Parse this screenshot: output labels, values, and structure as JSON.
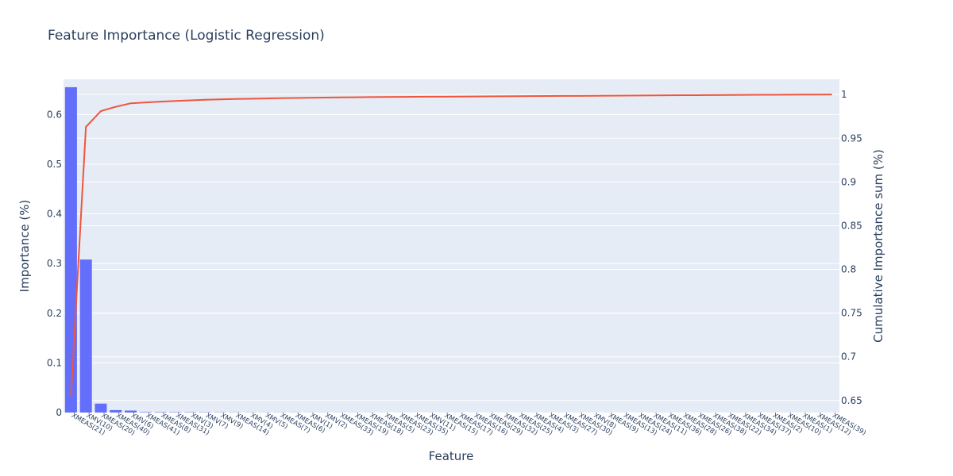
{
  "chart_data": {
    "type": "bar",
    "title": "Feature Importance (Logistic Regression)",
    "xlabel": "Feature",
    "ylabel": "Importance (%)",
    "y2label": "Cumulative Importance sum (%)",
    "ylim": [
      0,
      0.6708
    ],
    "y2lim": [
      0.6362,
      1.0174
    ],
    "yticks": [
      "0",
      "0.1",
      "0.2",
      "0.3",
      "0.4",
      "0.5",
      "0.6"
    ],
    "y2ticks": [
      "0.65",
      "0.7",
      "0.75",
      "0.8",
      "0.85",
      "0.9",
      "0.95",
      "1"
    ],
    "grid": true,
    "legend": "none",
    "categories": [
      "XMEAS(21)",
      "XMV(10)",
      "XMEAS(20)",
      "XMEAS(40)",
      "XMV(6)",
      "XMEAS(41)",
      "XMEAS(8)",
      "XMEAS(31)",
      "XMV(3)",
      "XMV(7)",
      "XMV(9)",
      "XMEAS(14)",
      "XMV(4)",
      "XMV(5)",
      "XMEAS(7)",
      "XMEAS(6)",
      "XMV(1)",
      "XMV(2)",
      "XMEAS(33)",
      "XMEAS(19)",
      "XMEAS(18)",
      "XMEAS(5)",
      "XMEAS(23)",
      "XMEAS(35)",
      "XMV(11)",
      "XMEAS(15)",
      "XMEAS(17)",
      "XMEAS(16)",
      "XMEAS(29)",
      "XMEAS(32)",
      "XMEAS(25)",
      "XMEAS(4)",
      "XMEAS(3)",
      "XMEAS(27)",
      "XMEAS(30)",
      "XMV(8)",
      "XMEAS(9)",
      "XMEAS(13)",
      "XMEAS(24)",
      "XMEAS(11)",
      "XMEAS(36)",
      "XMEAS(28)",
      "XMEAS(26)",
      "XMEAS(38)",
      "XMEAS(22)",
      "XMEAS(34)",
      "XMEAS(37)",
      "XMEAS(2)",
      "XMEAS(10)",
      "XMEAS(1)",
      "XMEAS(12)",
      "XMEAS(39)"
    ],
    "series": [
      {
        "type": "bar",
        "color": "#636efa",
        "values": [
          0.655,
          0.308,
          0.018,
          0.005,
          0.004,
          0.001,
          0.0009,
          0.0008,
          0.0007,
          0.0006,
          0.0005,
          0.0004,
          0.0003,
          0.0003,
          0.0003,
          0.0003,
          0.0002,
          0.0002,
          0.0002,
          0.0002,
          0.0002,
          0.0001,
          0.0001,
          0.0001,
          0.0001,
          0.0001,
          0.0001,
          0.0001,
          0.0001,
          0.0001,
          0.0001,
          0.0001,
          0.0001,
          0.0001,
          0.0001,
          0.0001,
          0.0001,
          0.0001,
          0.0001,
          0.0001,
          0.0001,
          0.0001,
          0.0001,
          0.0001,
          0.0001,
          0.0001,
          0.0001,
          0.0001,
          0.0001,
          0.0001,
          0.0001,
          0.0001
        ]
      },
      {
        "type": "line",
        "axis": "right",
        "color": "#ef553b",
        "values": [
          0.655,
          0.963,
          0.981,
          0.986,
          0.99,
          0.991,
          0.9919,
          0.9927,
          0.9934,
          0.994,
          0.9945,
          0.9949,
          0.9952,
          0.9955,
          0.9958,
          0.9961,
          0.9963,
          0.9965,
          0.9967,
          0.9969,
          0.9971,
          0.9972,
          0.9973,
          0.9974,
          0.9975,
          0.9976,
          0.9977,
          0.9978,
          0.9979,
          0.998,
          0.9981,
          0.9982,
          0.9983,
          0.9984,
          0.9985,
          0.9986,
          0.9987,
          0.9988,
          0.9989,
          0.999,
          0.9991,
          0.9992,
          0.9993,
          0.9994,
          0.9995,
          0.9996,
          0.9997,
          0.9997,
          0.9998,
          0.9999,
          0.9999,
          1.0
        ]
      }
    ]
  }
}
